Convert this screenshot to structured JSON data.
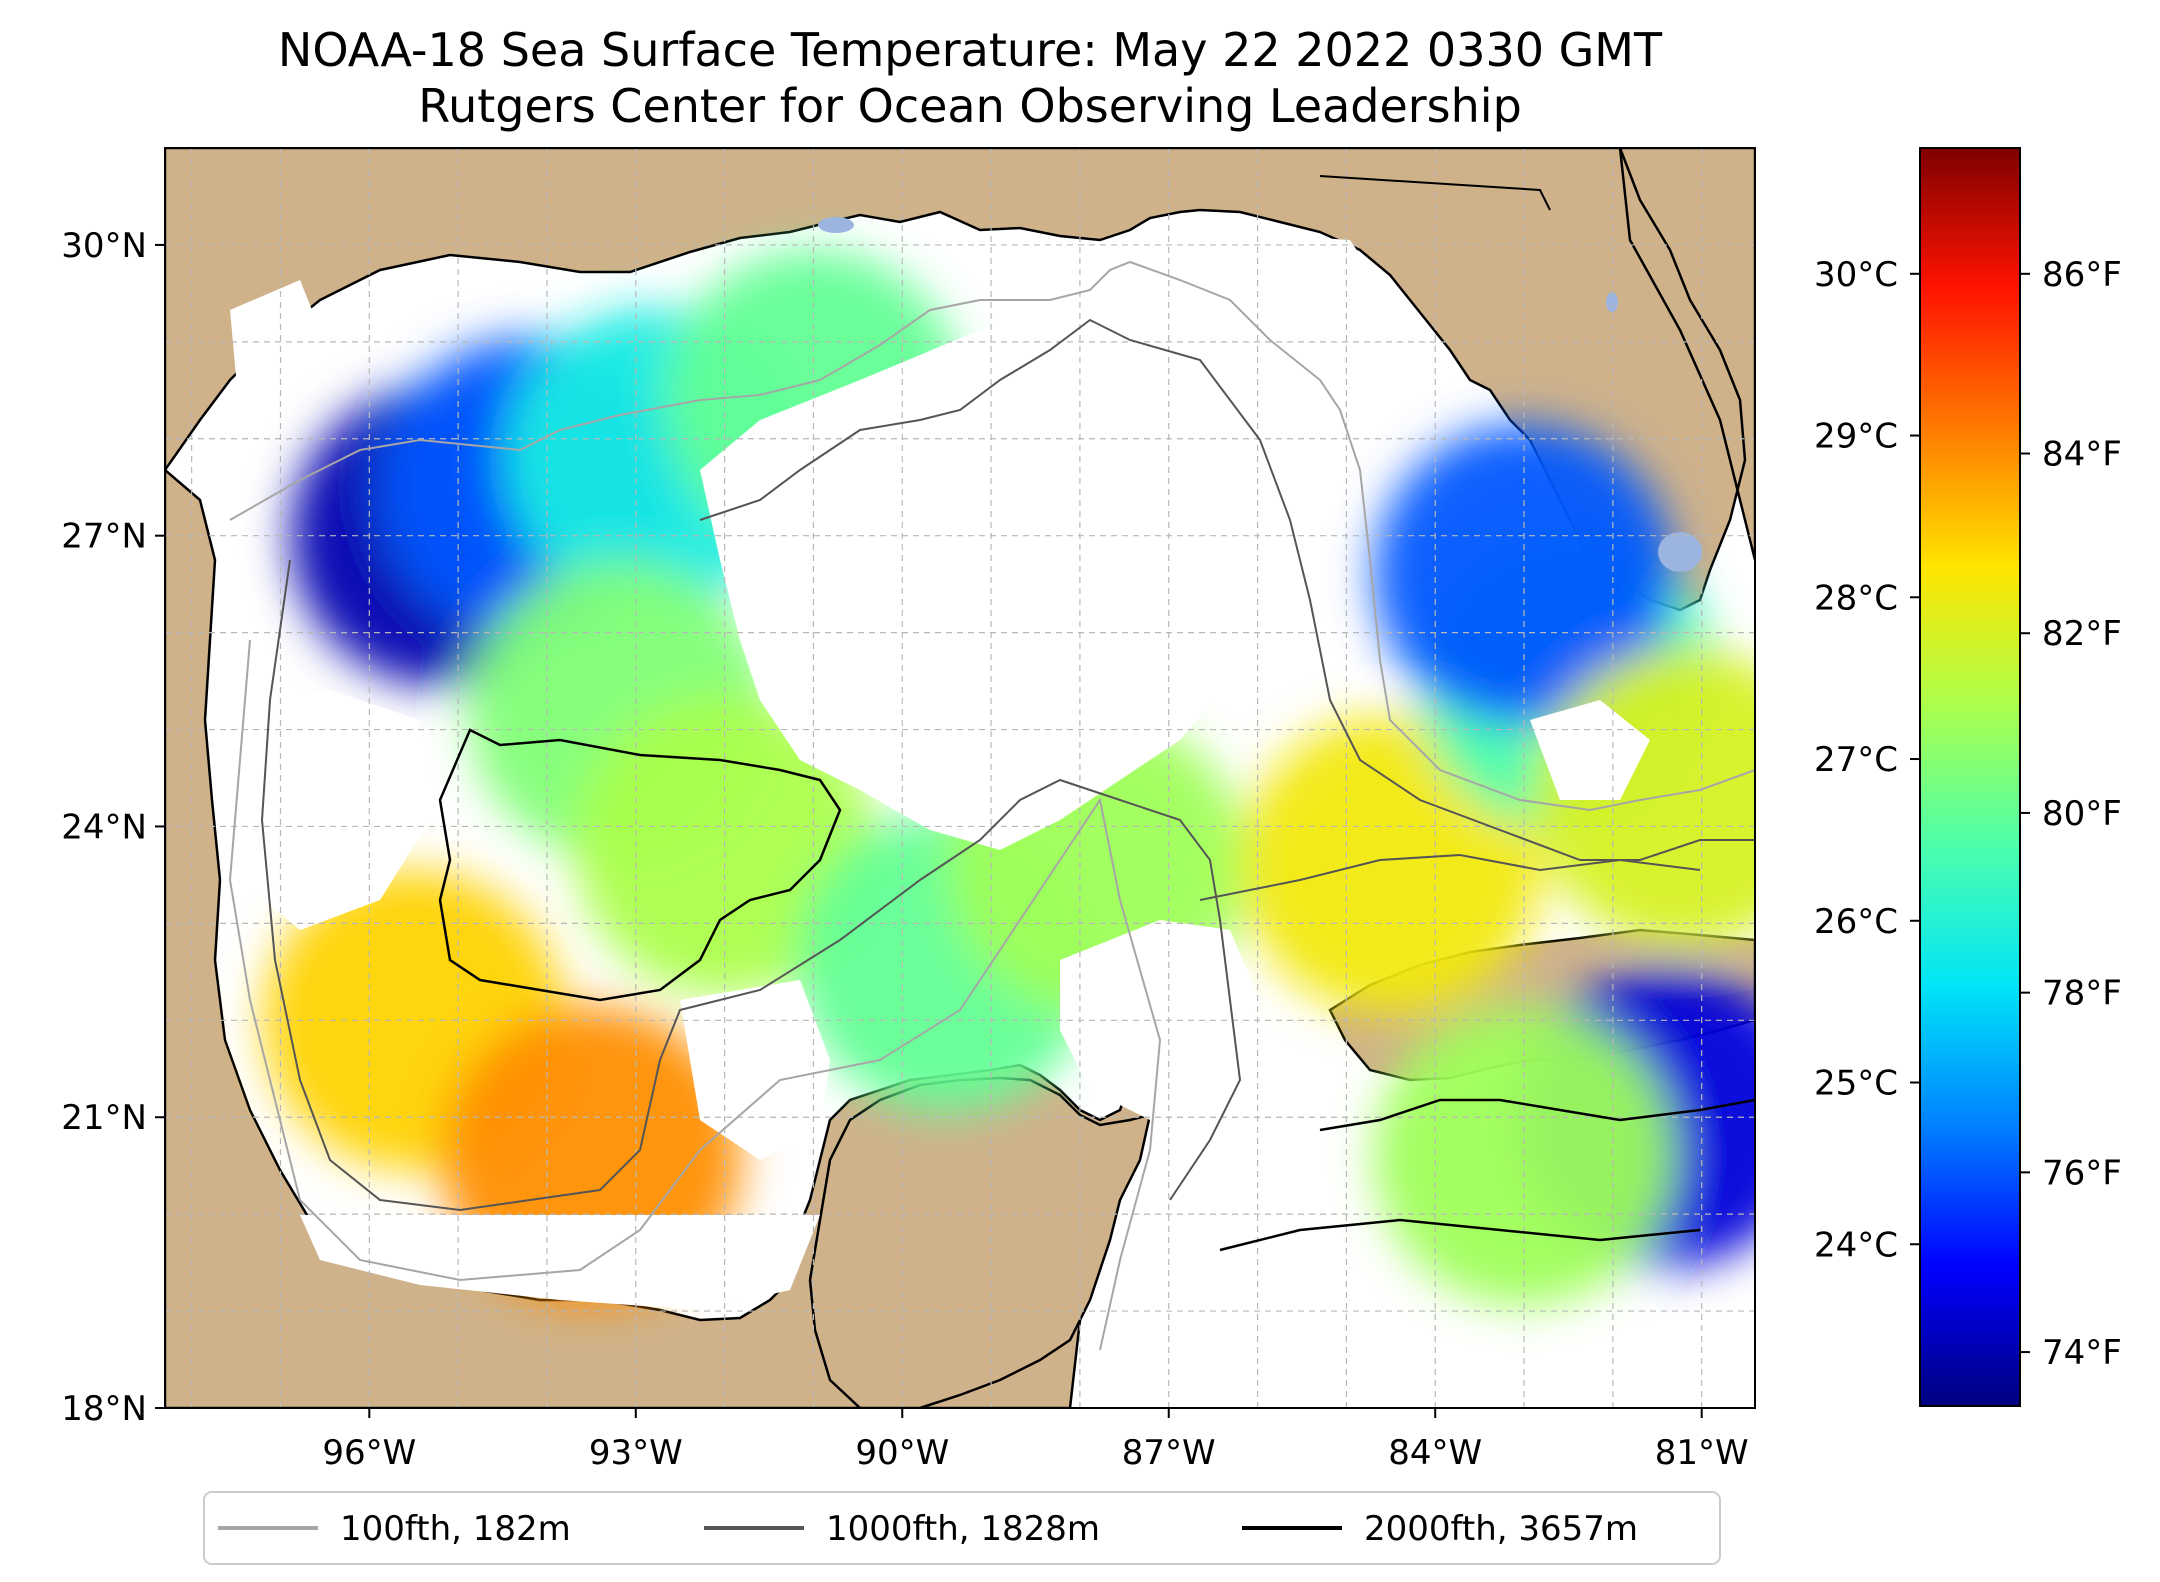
{
  "title": {
    "line1": "NOAA-18 Sea Surface Temperature: May 22 2022 0330 GMT",
    "line2": "Rutgers Center for Ocean Observing Leadership"
  },
  "colors": {
    "land": "#cfb28a",
    "lake": "#9bb4e0",
    "ocean": "#ffffff",
    "grid": "#b8b8b8",
    "contour_100": "#a6a6a6",
    "contour_1000": "#555555",
    "contour_2000": "#000000"
  },
  "map_extent": {
    "lon_min": -98.3,
    "lon_max": -80.4,
    "lat_min": 18.0,
    "lat_max": 31.0
  },
  "axes": {
    "lat_ticks": [
      {
        "value": 30,
        "label": "30°N"
      },
      {
        "value": 27,
        "label": "27°N"
      },
      {
        "value": 24,
        "label": "24°N"
      },
      {
        "value": 21,
        "label": "21°N"
      },
      {
        "value": 18,
        "label": "18°N"
      }
    ],
    "lon_ticks": [
      {
        "value": -96,
        "label": "96°W"
      },
      {
        "value": -93,
        "label": "93°W"
      },
      {
        "value": -90,
        "label": "90°W"
      },
      {
        "value": -87,
        "label": "87°W"
      },
      {
        "value": -84,
        "label": "84°W"
      },
      {
        "value": -81,
        "label": "81°W"
      }
    ]
  },
  "colorbar": {
    "f_range": [
      73.4,
      87.4
    ],
    "c_ticks": [
      {
        "value": 30,
        "label": "30°C"
      },
      {
        "value": 29,
        "label": "29°C"
      },
      {
        "value": 28,
        "label": "28°C"
      },
      {
        "value": 27,
        "label": "27°C"
      },
      {
        "value": 26,
        "label": "26°C"
      },
      {
        "value": 25,
        "label": "25°C"
      },
      {
        "value": 24,
        "label": "24°C"
      }
    ],
    "f_ticks": [
      {
        "value": 86,
        "label": "86°F"
      },
      {
        "value": 84,
        "label": "84°F"
      },
      {
        "value": 82,
        "label": "82°F"
      },
      {
        "value": 80,
        "label": "80°F"
      },
      {
        "value": 78,
        "label": "78°F"
      },
      {
        "value": 76,
        "label": "76°F"
      },
      {
        "value": 74,
        "label": "74°F"
      }
    ],
    "stops": [
      "#00007f",
      "#0000ff",
      "#0080ff",
      "#00e4f8",
      "#4cffac",
      "#aaff4d",
      "#ffe500",
      "#ff7a00",
      "#ff1300",
      "#7f0000"
    ]
  },
  "legend": {
    "items": [
      {
        "label": "100fth, 182m",
        "color": "#a6a6a6"
      },
      {
        "label": "1000fth, 1828m",
        "color": "#555555"
      },
      {
        "label": "2000fth, 3657m",
        "color": "#000000"
      }
    ]
  },
  "sst_patches_f": [
    {
      "lon": -95.2,
      "lat": 27.0,
      "temp_f": 74.0
    },
    {
      "lon": -94.2,
      "lat": 27.5,
      "temp_f": 76.0
    },
    {
      "lon": -92.8,
      "lat": 27.8,
      "temp_f": 78.5
    },
    {
      "lon": -91.0,
      "lat": 28.4,
      "temp_f": 80.0
    },
    {
      "lon": -93.2,
      "lat": 25.2,
      "temp_f": 80.5
    },
    {
      "lon": -92.0,
      "lat": 23.8,
      "temp_f": 81.2
    },
    {
      "lon": -95.5,
      "lat": 22.0,
      "temp_f": 83.0
    },
    {
      "lon": -93.5,
      "lat": 20.6,
      "temp_f": 84.0
    },
    {
      "lon": -89.5,
      "lat": 22.6,
      "temp_f": 80.0
    },
    {
      "lon": -87.8,
      "lat": 23.6,
      "temp_f": 81.0
    },
    {
      "lon": -84.5,
      "lat": 23.6,
      "temp_f": 82.5
    },
    {
      "lon": -82.5,
      "lat": 25.5,
      "temp_f": 79.5
    },
    {
      "lon": -83.0,
      "lat": 26.6,
      "temp_f": 76.0
    },
    {
      "lon": -81.2,
      "lat": 24.3,
      "temp_f": 82.0
    },
    {
      "lon": -81.4,
      "lat": 21.0,
      "temp_f": 74.5
    },
    {
      "lon": -83.0,
      "lat": 20.6,
      "temp_f": 81.0
    }
  ]
}
